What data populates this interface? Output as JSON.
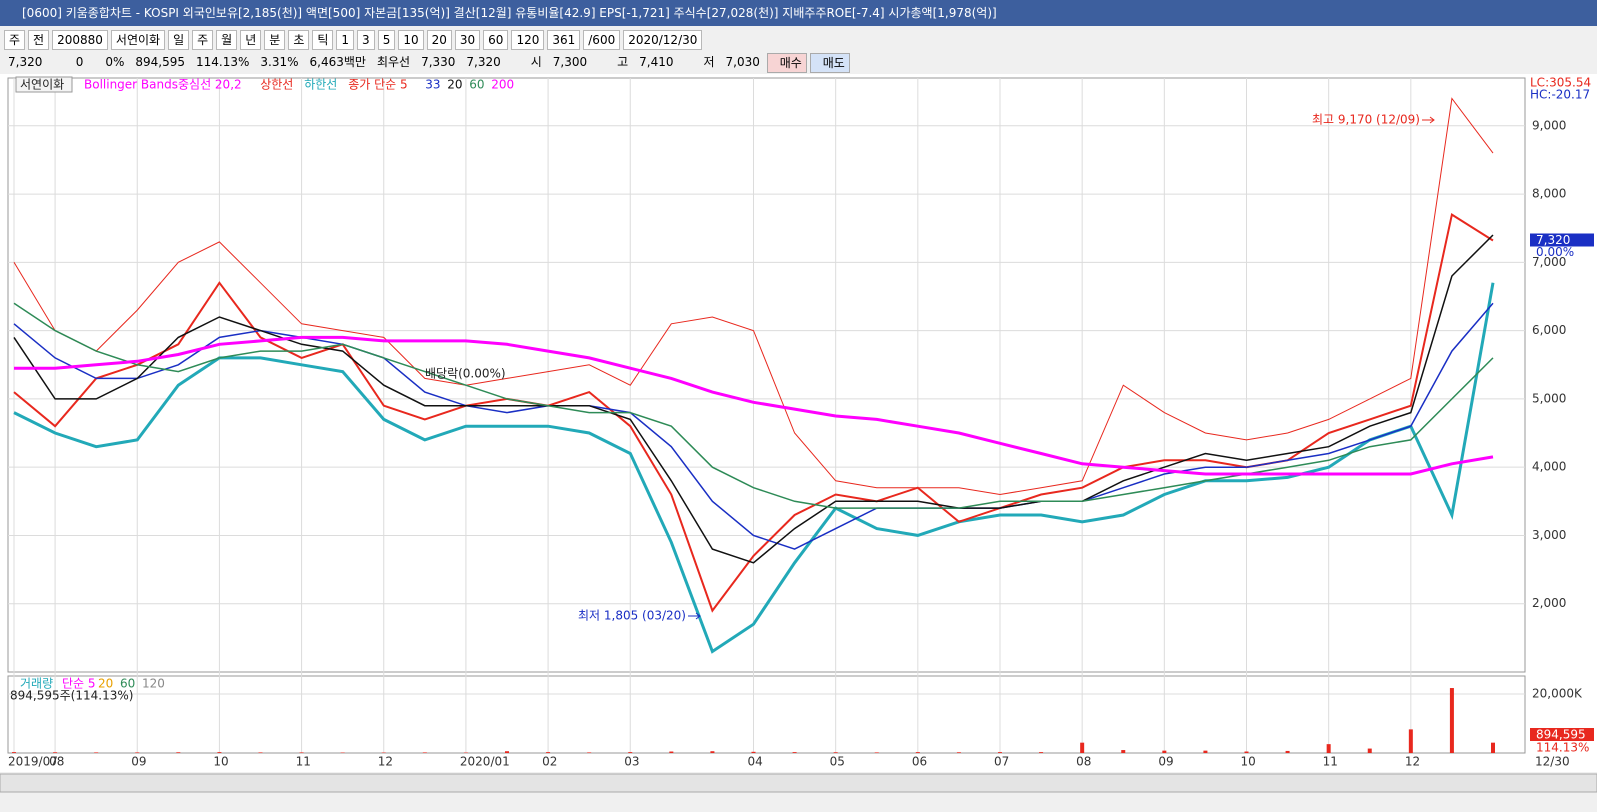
{
  "window": {
    "title": "[0600] 키움종합차트 - KOSPI 외국인보유[2,185(천)] 액면[500] 자본금[135(억)] 결산[12월] 유통비율[42.9] EPS[-1,721] 주식수[27,028(천)] 지배주주ROE[-7.4] 시가총액[1,978(억)]"
  },
  "toolbar": {
    "items": [
      "주",
      "전",
      "200880",
      "서연이화",
      "일",
      "주",
      "월",
      "년",
      "분",
      "초",
      "틱",
      "1",
      "3",
      "5",
      "10",
      "20",
      "30",
      "60",
      "120",
      "361",
      "/600",
      "2020/12/30"
    ]
  },
  "info": {
    "items": [
      "7,320",
      "0",
      "0%",
      "894,595",
      "114.13%",
      "3.31%",
      "6,463백만",
      "최우선",
      "7,330",
      "7,320",
      "시",
      "7,300",
      "고",
      "7,410",
      "저",
      "7,030"
    ],
    "buy": "매수",
    "sell": "매도"
  },
  "chart_data": [
    {
      "type": "line",
      "stock_label": "서연이화",
      "indicator_label": "Bollinger Bands중심선 20,2",
      "categories": [
        "2019/07",
        "08",
        null,
        "09",
        null,
        "10",
        null,
        "11",
        null,
        "12",
        null,
        "2020/01",
        null,
        "02",
        null,
        "03",
        null,
        null,
        "04",
        null,
        "05",
        null,
        "06",
        null,
        "07",
        null,
        "08",
        null,
        "09",
        null,
        "10",
        null,
        "11",
        null,
        "12",
        null,
        null
      ],
      "end_label": "12/30",
      "series": [
        {
          "name": "상한선",
          "color": "#e8281e",
          "values": [
            7000,
            6000,
            5700,
            6300,
            7000,
            7300,
            6700,
            6100,
            6000,
            5900,
            5300,
            5200,
            5300,
            5400,
            5500,
            5200,
            6100,
            6200,
            6000,
            4500,
            3800,
            3700,
            3700,
            3700,
            3600,
            3700,
            3800,
            5200,
            4800,
            4500,
            4400,
            4500,
            4700,
            5000,
            5300,
            9400,
            8600
          ]
        },
        {
          "name": "하한선",
          "color": "#22a9b8",
          "values": [
            4800,
            4500,
            4300,
            4400,
            5200,
            5600,
            5600,
            5500,
            5400,
            4700,
            4400,
            4600,
            4600,
            4600,
            4500,
            4200,
            2900,
            1300,
            1700,
            2600,
            3400,
            3100,
            3000,
            3200,
            3300,
            3300,
            3200,
            3300,
            3600,
            3800,
            3800,
            3850,
            4000,
            4400,
            4600,
            3300,
            6700
          ]
        },
        {
          "name": "종가 단순 5",
          "color": "#e8281e",
          "values": [
            5100,
            4600,
            5300,
            5500,
            5800,
            6700,
            5900,
            5600,
            5800,
            4900,
            4700,
            4900,
            5000,
            4900,
            5100,
            4600,
            3600,
            1900,
            2700,
            3300,
            3600,
            3500,
            3700,
            3200,
            3400,
            3600,
            3700,
            4000,
            4100,
            4100,
            4000,
            4100,
            4500,
            4700,
            4900,
            7700,
            7320
          ]
        },
        {
          "name": "33",
          "color": "#1a2fc4",
          "values": [
            6100,
            5600,
            5300,
            5300,
            5500,
            5900,
            6000,
            5900,
            5800,
            5600,
            5100,
            4900,
            4800,
            4900,
            4900,
            4800,
            4300,
            3500,
            3000,
            2800,
            3100,
            3400,
            3400,
            3400,
            3400,
            3500,
            3500,
            3700,
            3900,
            4000,
            4000,
            4100,
            4200,
            4400,
            4600,
            5700,
            6400
          ]
        },
        {
          "name": "20",
          "color": "#111111",
          "values": [
            5900,
            5000,
            5000,
            5300,
            5900,
            6200,
            6000,
            5800,
            5700,
            5200,
            4900,
            4900,
            4900,
            4900,
            4900,
            4700,
            3800,
            2800,
            2600,
            3100,
            3500,
            3500,
            3500,
            3400,
            3400,
            3500,
            3500,
            3800,
            4000,
            4200,
            4100,
            4200,
            4300,
            4600,
            4800,
            6800,
            7400
          ]
        },
        {
          "name": "60",
          "color": "#2e8b57",
          "values": [
            6400,
            6000,
            5700,
            5500,
            5400,
            5600,
            5700,
            5700,
            5800,
            5600,
            5400,
            5200,
            5000,
            4900,
            4800,
            4800,
            4600,
            4000,
            3700,
            3500,
            3400,
            3400,
            3400,
            3400,
            3500,
            3500,
            3500,
            3600,
            3700,
            3800,
            3900,
            4000,
            4100,
            4300,
            4400,
            5000,
            5600
          ]
        },
        {
          "name": "200",
          "color": "#ff00ff",
          "values": [
            5450,
            5450,
            5500,
            5550,
            5650,
            5800,
            5850,
            5900,
            5900,
            5850,
            5850,
            5850,
            5800,
            5700,
            5600,
            5450,
            5300,
            5100,
            4950,
            4850,
            4750,
            4700,
            4600,
            4500,
            4350,
            4200,
            4050,
            4000,
            3950,
            3900,
            3900,
            3900,
            3900,
            3900,
            3900,
            4050,
            4150
          ]
        }
      ],
      "ylim": [
        1000,
        9700
      ],
      "yticks": [
        {
          "value": 2000,
          "label": "2,000"
        },
        {
          "value": 3000,
          "label": "3,000"
        },
        {
          "value": 4000,
          "label": "4,000"
        },
        {
          "value": 5000,
          "label": "5,000"
        },
        {
          "value": 6000,
          "label": "6,000"
        },
        {
          "value": 7000,
          "label": "7,000"
        },
        {
          "value": 8000,
          "label": "8,000"
        },
        {
          "value": 9000,
          "label": "9,000"
        }
      ],
      "grid": true,
      "right_labels": [
        "LC:305.54",
        "HC:-20.17"
      ],
      "current": {
        "value": 7320,
        "label": "7,320",
        "change": "0.00%"
      },
      "annotations": [
        "배당락(0.00%)",
        "최고 9,170 (12/09)",
        "최저 1,805 (03/20)"
      ]
    },
    {
      "type": "bar",
      "title": "거래량",
      "ma_labels": [
        "단순 5",
        "20",
        "60",
        "120"
      ],
      "subtitle": "894,595주(114.13%)",
      "color": "#e8281e",
      "values": [
        300,
        250,
        200,
        200,
        250,
        300,
        200,
        200,
        150,
        150,
        200,
        150,
        600,
        300,
        200,
        300,
        500,
        600,
        400,
        300,
        250,
        200,
        300,
        250,
        300,
        300,
        3500,
        1000,
        800,
        800,
        500,
        700,
        3000,
        1500,
        8000,
        22000,
        3500
      ],
      "ylim": [
        0,
        25400
      ],
      "yticks": [
        {
          "value": 20000,
          "label": "20,000K"
        }
      ],
      "current_labels": [
        "894,595",
        "114.13%"
      ]
    }
  ]
}
